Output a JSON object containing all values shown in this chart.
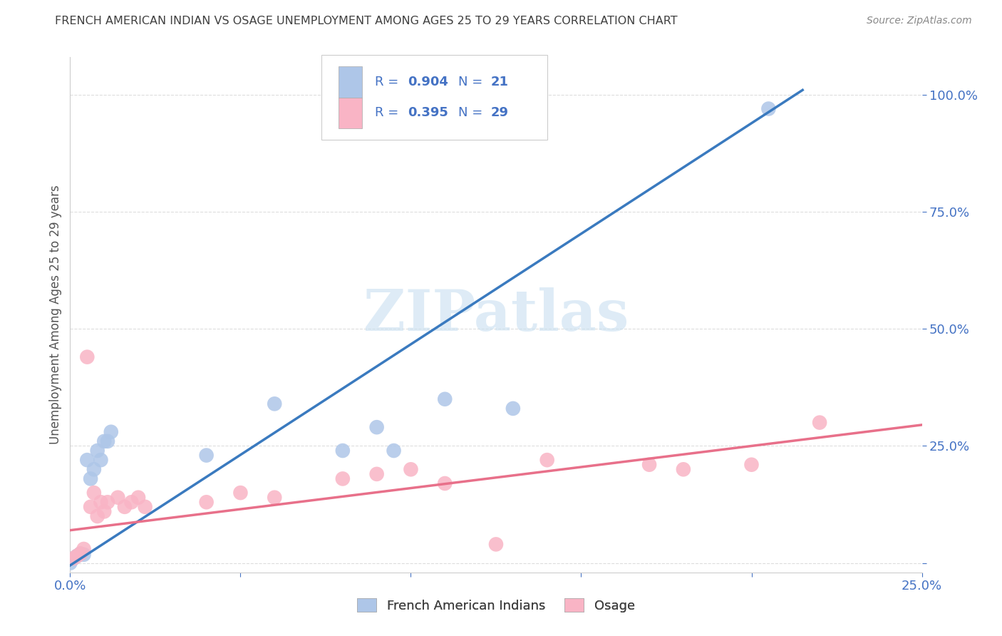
{
  "title": "FRENCH AMERICAN INDIAN VS OSAGE UNEMPLOYMENT AMONG AGES 25 TO 29 YEARS CORRELATION CHART",
  "source": "Source: ZipAtlas.com",
  "ylabel": "Unemployment Among Ages 25 to 29 years",
  "watermark": "ZIPatlas",
  "legend": {
    "blue_r": "0.904",
    "blue_n": "21",
    "pink_r": "0.395",
    "pink_n": "29",
    "blue_label": "French American Indians",
    "pink_label": "Osage"
  },
  "blue_scatter_x": [
    0.001,
    0.002,
    0.003,
    0.004,
    0.005,
    0.006,
    0.007,
    0.008,
    0.009,
    0.01,
    0.011,
    0.012,
    0.04,
    0.06,
    0.08,
    0.09,
    0.095,
    0.11,
    0.13,
    0.205,
    0.0
  ],
  "blue_scatter_y": [
    0.01,
    0.015,
    0.02,
    0.018,
    0.22,
    0.18,
    0.2,
    0.24,
    0.22,
    0.26,
    0.26,
    0.28,
    0.23,
    0.34,
    0.24,
    0.29,
    0.24,
    0.35,
    0.33,
    0.97,
    0.0
  ],
  "pink_scatter_x": [
    0.001,
    0.002,
    0.003,
    0.004,
    0.005,
    0.006,
    0.007,
    0.008,
    0.009,
    0.01,
    0.011,
    0.014,
    0.016,
    0.018,
    0.02,
    0.022,
    0.04,
    0.05,
    0.06,
    0.08,
    0.09,
    0.1,
    0.11,
    0.14,
    0.17,
    0.18,
    0.2,
    0.22,
    0.125
  ],
  "pink_scatter_y": [
    0.01,
    0.015,
    0.02,
    0.03,
    0.44,
    0.12,
    0.15,
    0.1,
    0.13,
    0.11,
    0.13,
    0.14,
    0.12,
    0.13,
    0.14,
    0.12,
    0.13,
    0.15,
    0.14,
    0.18,
    0.19,
    0.2,
    0.17,
    0.22,
    0.21,
    0.2,
    0.21,
    0.3,
    0.04
  ],
  "blue_line_x": [
    0.0,
    0.215
  ],
  "blue_line_y": [
    -0.005,
    1.01
  ],
  "pink_line_x": [
    0.0,
    0.25
  ],
  "pink_line_y": [
    0.07,
    0.295
  ],
  "yticks": [
    0.0,
    0.25,
    0.5,
    0.75,
    1.0
  ],
  "ytick_labels": [
    "",
    "25.0%",
    "50.0%",
    "75.0%",
    "100.0%"
  ],
  "xticks": [
    0.0,
    0.05,
    0.1,
    0.15,
    0.2,
    0.25
  ],
  "xtick_labels": [
    "0.0%",
    "",
    "",
    "",
    "",
    "25.0%"
  ],
  "xlim": [
    0.0,
    0.25
  ],
  "ylim": [
    -0.02,
    1.08
  ],
  "blue_scatter_color": "#aec6e8",
  "pink_scatter_color": "#f9b4c5",
  "blue_line_color": "#3a7abf",
  "pink_line_color": "#e8708a",
  "background_color": "#ffffff",
  "title_color": "#404040",
  "source_color": "#888888",
  "axis_label_color": "#555555",
  "tick_color": "#4472c4",
  "grid_color": "#dddddd",
  "watermark_color": "#c8dff0",
  "legend_text_color": "#4472c4"
}
